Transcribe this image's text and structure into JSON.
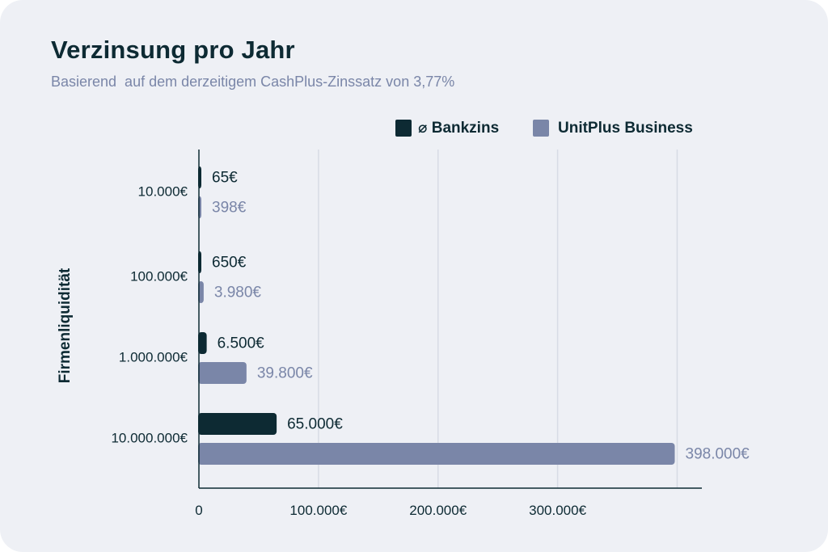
{
  "colors": {
    "background": "#eef0f5",
    "bankzins": "#0d2a33",
    "unitplus": "#7a86a8",
    "grid": "#d7dbe5",
    "axis": "#0d2a33"
  },
  "chart_data": {
    "type": "bar",
    "orientation": "horizontal",
    "title": "Verzinsung pro Jahr",
    "subtitle": "Basierend  auf dem derzeitigem CashPlus-Zinssatz von 3,77%",
    "ylabel": "Firmenliquidität",
    "xlabel": "",
    "xlim": [
      0,
      420000
    ],
    "xticks": [
      0,
      100000,
      200000,
      300000
    ],
    "xtick_labels": [
      "0",
      "100.000€",
      "200.000€",
      "300.000€"
    ],
    "grid": true,
    "legend_position": "top-right",
    "categories": [
      "10.000€",
      "100.000€",
      "1.000.000€",
      "10.000.000€"
    ],
    "series": [
      {
        "name": "⌀ Bankzins",
        "color_key": "bankzins",
        "values": [
          65,
          650,
          6500,
          65000
        ],
        "labels": [
          "65€",
          "650€",
          "6.500€",
          "65.000€"
        ]
      },
      {
        "name": "UnitPlus Business",
        "color_key": "unitplus",
        "values": [
          398,
          3980,
          39800,
          398000
        ],
        "labels": [
          "398€",
          "3.980€",
          "39.800€",
          "398.000€"
        ]
      }
    ]
  }
}
